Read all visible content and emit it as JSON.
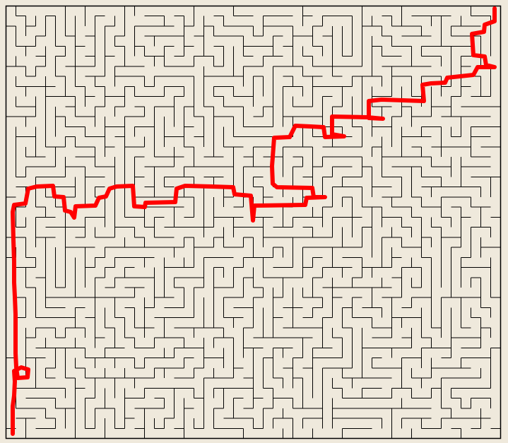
{
  "maze": {
    "background_color": "#efe9dc",
    "wall_color": "#000000",
    "solution_color": "#ff0000",
    "columns": 50,
    "rows": 43,
    "seed": 17
  }
}
